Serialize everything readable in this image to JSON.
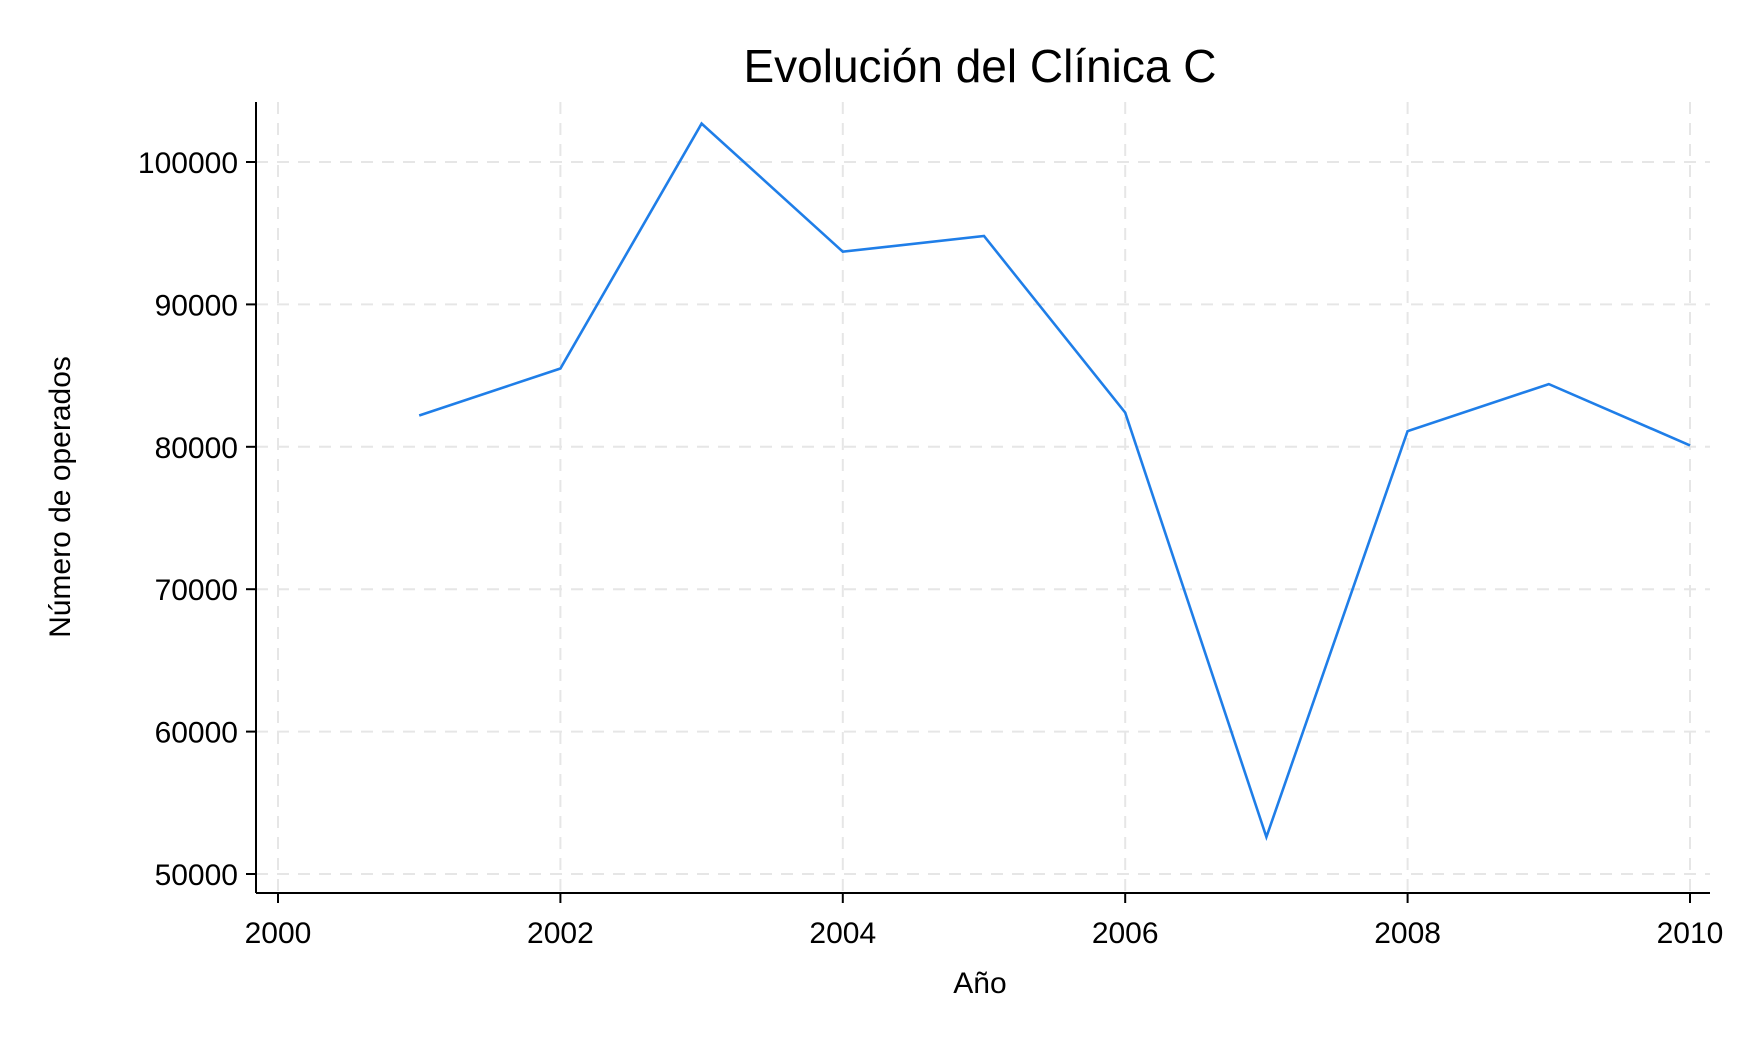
{
  "chart_data": {
    "type": "line",
    "title": "Evolución del Clínica C",
    "xlabel": "Año",
    "ylabel": "Número de operados",
    "xlim": [
      2000,
      2010
    ],
    "ylim": [
      50000,
      103000
    ],
    "x_ticks": [
      "2000",
      "2002",
      "2004",
      "2006",
      "2008",
      "2010"
    ],
    "y_ticks": [
      "50000",
      "60000",
      "70000",
      "80000",
      "90000",
      "100000"
    ],
    "grid": true,
    "legend": "none",
    "series": [
      {
        "color": "#1f7ee8",
        "x": [
          2001,
          2002,
          2003,
          2004,
          2005,
          2006,
          2007,
          2008,
          2009,
          2010
        ],
        "y": [
          82200,
          85500,
          102700,
          93700,
          94800,
          82400,
          52600,
          81100,
          84400,
          80100
        ]
      }
    ]
  }
}
